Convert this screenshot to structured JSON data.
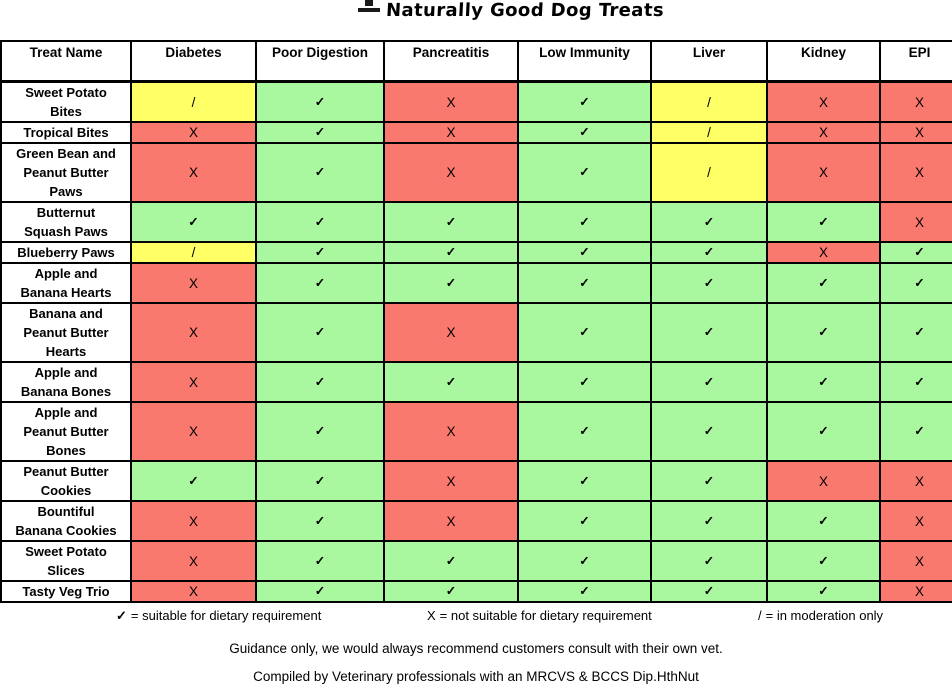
{
  "brand": {
    "title": "Naturally Good Dog Treats"
  },
  "colors": {
    "suitable": "#a9f79e",
    "not_suitable": "#fa796e",
    "moderation": "#ffff66",
    "border": "#000000"
  },
  "symbols": {
    "suitable": "✓",
    "not_suitable": "X",
    "moderation": "/"
  },
  "table": {
    "columns": [
      "Treat Name",
      "Diabetes",
      "Poor Digestion",
      "Pancreatitis",
      "Low Immunity",
      "Liver",
      "Kidney",
      "EPI"
    ],
    "rows": [
      {
        "name": "Sweet Potato Bites",
        "cells": [
          "/",
          "✓",
          "X",
          "✓",
          "/",
          "X",
          "X"
        ]
      },
      {
        "name": "Tropical Bites",
        "cells": [
          "X",
          "✓",
          "X",
          "✓",
          "/",
          "X",
          "X"
        ]
      },
      {
        "name": "Green Bean and Peanut Butter Paws",
        "cells": [
          "X",
          "✓",
          "X",
          "✓",
          "/",
          "X",
          "X"
        ]
      },
      {
        "name": "Butternut Squash Paws",
        "cells": [
          "✓",
          "✓",
          "✓",
          "✓",
          "✓",
          "✓",
          "X"
        ]
      },
      {
        "name": "Blueberry Paws",
        "cells": [
          "/",
          "✓",
          "✓",
          "✓",
          "✓",
          "X",
          "✓"
        ]
      },
      {
        "name": "Apple and Banana Hearts",
        "cells": [
          "X",
          "✓",
          "✓",
          "✓",
          "✓",
          "✓",
          "✓"
        ]
      },
      {
        "name": "Banana and Peanut Butter Hearts",
        "cells": [
          "X",
          "✓",
          "X",
          "✓",
          "✓",
          "✓",
          "✓"
        ]
      },
      {
        "name": "Apple and Banana Bones",
        "cells": [
          "X",
          "✓",
          "✓",
          "✓",
          "✓",
          "✓",
          "✓"
        ]
      },
      {
        "name": "Apple and Peanut Butter Bones",
        "cells": [
          "X",
          "✓",
          "X",
          "✓",
          "✓",
          "✓",
          "✓"
        ]
      },
      {
        "name": "Peanut Butter Cookies",
        "cells": [
          "✓",
          "✓",
          "X",
          "✓",
          "✓",
          "X",
          "X"
        ]
      },
      {
        "name": "Bountiful Banana Cookies",
        "cells": [
          "X",
          "✓",
          "X",
          "✓",
          "✓",
          "✓",
          "X"
        ]
      },
      {
        "name": "Sweet Potato Slices",
        "cells": [
          "X",
          "✓",
          "✓",
          "✓",
          "✓",
          "✓",
          "X"
        ]
      },
      {
        "name": "Tasty Veg Trio",
        "cells": [
          "X",
          "✓",
          "✓",
          "✓",
          "✓",
          "✓",
          "X"
        ]
      }
    ]
  },
  "legend": {
    "items": [
      {
        "symbol": "✓",
        "text": "= suitable for dietary requirement"
      },
      {
        "symbol": "X",
        "text": "= not suitable for dietary requirement"
      },
      {
        "symbol": "/",
        "text": "= in moderation only"
      }
    ]
  },
  "footnotes": [
    "Guidance only, we would always recommend customers consult with their own vet.",
    "Compiled by Veterinary professionals with an MRCVS & BCCS Dip.HthNut"
  ]
}
